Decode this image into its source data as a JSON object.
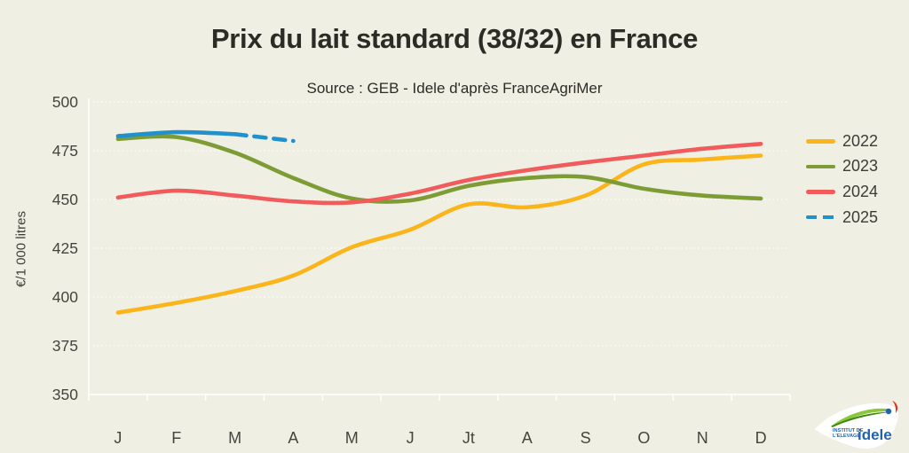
{
  "title": "Prix du lait standard (38/32) en France",
  "subtitle": "Source : GEB - Idele d'après FranceAgriMer",
  "chart_data": {
    "type": "line",
    "title": "Prix du lait standard (38/32) en France",
    "subtitle": "Source : GEB - Idele d'après FranceAgriMer",
    "xlabel": "",
    "ylabel": "€/1 000 litres",
    "x_categories": [
      "J",
      "F",
      "M",
      "A",
      "M",
      "J",
      "Jt",
      "A",
      "S",
      "O",
      "N",
      "D"
    ],
    "ylim": [
      350,
      500
    ],
    "yticks": [
      350,
      375,
      400,
      425,
      450,
      475,
      500
    ],
    "grid": true,
    "legend_position": "right",
    "series": [
      {
        "name": "2022",
        "color": "#FBB41A",
        "style": "solid",
        "values": [
          392,
          397,
          403,
          411,
          425.5,
          434.5,
          447.5,
          446,
          452,
          468,
          470.5,
          472.5
        ]
      },
      {
        "name": "2023",
        "color": "#7D9C35",
        "style": "solid",
        "values": [
          481,
          482,
          474,
          461,
          450.5,
          449.5,
          457,
          461,
          461.5,
          455.5,
          452,
          450.5
        ]
      },
      {
        "name": "2024",
        "color": "#F15B5B",
        "style": "solid",
        "values": [
          451,
          454.5,
          452,
          449,
          448.5,
          453,
          460,
          465,
          469,
          472.5,
          476,
          478.5
        ]
      },
      {
        "name": "2025",
        "color": "#2191CE",
        "style": "solid-then-dashed",
        "dash_from_index": 2,
        "values": [
          482.5,
          484.5,
          483.5,
          480
        ]
      }
    ]
  },
  "legend": {
    "items": [
      {
        "label": "2022"
      },
      {
        "label": "2023"
      },
      {
        "label": "2024"
      },
      {
        "label": "2025"
      }
    ]
  },
  "logo": {
    "line1": "INSTITUT DE",
    "line2": "L'ELEVAGE",
    "brand": "idele"
  },
  "colors": {
    "background": "#F0EFE4",
    "grid": "#FFFFFF",
    "axis_text": "#45453F",
    "title_text": "#2C2C26",
    "series_2022": "#FBB41A",
    "series_2023": "#7D9C35",
    "series_2024": "#F15B5B",
    "series_2025": "#2191CE",
    "logo_blue": "#2064AE",
    "logo_green": "#6FAE2B",
    "logo_red": "#E0301E"
  }
}
